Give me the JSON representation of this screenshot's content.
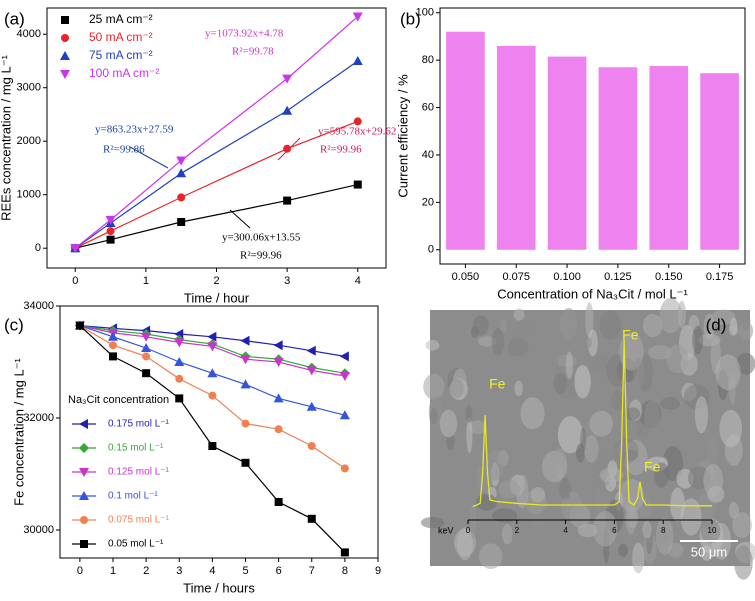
{
  "chart_data": [
    {
      "type": "scatter-line",
      "label": "(a)",
      "xlabel": "Time / hour",
      "ylabel": "REEs concentration / mg L⁻¹",
      "x": [
        0,
        0.5,
        1.5,
        3,
        4
      ],
      "xlim": [
        -0.4,
        4.4
      ],
      "xticks": [
        0,
        1,
        2,
        3,
        4
      ],
      "ylim": [
        -370,
        4490
      ],
      "yticks": [
        0,
        1000,
        2000,
        3000,
        4000
      ],
      "legend": "upper left",
      "series": [
        {
          "name": "25 mA cm⁻²",
          "color": "#000000",
          "marker": "square",
          "values": [
            0,
            160,
            490,
            890,
            1190
          ]
        },
        {
          "name": "50 mA cm⁻²",
          "color": "#e8242a",
          "marker": "circle",
          "values": [
            0,
            320,
            950,
            1860,
            2370
          ]
        },
        {
          "name": "75 mA cm⁻²",
          "color": "#2040c0",
          "marker": "triangle-up",
          "values": [
            0,
            470,
            1400,
            2570,
            3500
          ]
        },
        {
          "name": "100 mA cm⁻²",
          "color": "#cc33ee",
          "marker": "triangle-down",
          "values": [
            0,
            530,
            1640,
            3170,
            4330
          ]
        }
      ],
      "annotations": [
        {
          "text": "y=1073.92x+4.78",
          "color": "#cc33cc"
        },
        {
          "text": "R²=99.78",
          "color": "#cc33cc"
        },
        {
          "text": "y=863.23x+27.59",
          "color": "#1a3f9c"
        },
        {
          "text": "R²=99.86",
          "color": "#1a3f9c"
        },
        {
          "text": "y=595.78x+29.62",
          "color": "#d4145a"
        },
        {
          "text": "R²=99.96",
          "color": "#d4145a"
        },
        {
          "text": "y=300.06x+13.55",
          "color": "#000000"
        },
        {
          "text": "R²=99.96",
          "color": "#000000"
        }
      ]
    },
    {
      "type": "bar",
      "label": "(b)",
      "xlabel": "Concentration of Na₃Cit / mol L⁻¹",
      "ylabel": "Current efficiency / %",
      "categories": [
        "0.050",
        "0.075",
        "0.100",
        "0.125",
        "0.150",
        "0.175"
      ],
      "values": [
        92,
        86,
        81.5,
        77,
        77.5,
        74.5
      ],
      "color": "#ee82ee",
      "ylim": [
        -6,
        102
      ],
      "yticks": [
        0,
        20,
        40,
        60,
        80,
        100
      ]
    },
    {
      "type": "scatter-line",
      "label": "(c)",
      "xlabel": "Time / hours",
      "ylabel": "Fe concentration / mg L⁻¹",
      "x": [
        0,
        1,
        2,
        3,
        4,
        5,
        6,
        7,
        8
      ],
      "xlim": [
        -0.6,
        9
      ],
      "xticks": [
        0,
        1,
        2,
        3,
        4,
        5,
        6,
        7,
        8,
        9
      ],
      "ylim": [
        29500,
        34000
      ],
      "yticks": [
        30000,
        32000,
        34000
      ],
      "legend": "lower left",
      "legend_title": "Na₃Cit concentration",
      "series": [
        {
          "name": "0.175 mol L⁻¹",
          "color": "#1f1fb4",
          "marker": "triangle-left",
          "values": [
            33650,
            33600,
            33560,
            33500,
            33450,
            33380,
            33300,
            33200,
            33100
          ]
        },
        {
          "name": "0.15 mol L⁻¹",
          "color": "#33aa33",
          "marker": "diamond",
          "values": [
            33650,
            33560,
            33500,
            33400,
            33320,
            33100,
            33050,
            32900,
            32800
          ]
        },
        {
          "name": "0.125 mol L⁻¹",
          "color": "#cc33cc",
          "marker": "triangle-down",
          "values": [
            33650,
            33520,
            33450,
            33350,
            33280,
            33050,
            33000,
            32850,
            32750
          ]
        },
        {
          "name": "0.1 mol L⁻¹",
          "color": "#3355dd",
          "marker": "triangle-up",
          "values": [
            33650,
            33450,
            33250,
            33000,
            32800,
            32600,
            32350,
            32200,
            32050
          ]
        },
        {
          "name": "0.075 mol L⁻¹",
          "color": "#f08050",
          "marker": "circle",
          "values": [
            33650,
            33300,
            33100,
            32700,
            32400,
            31900,
            31800,
            31500,
            31100
          ]
        },
        {
          "name": "0.05 mol L⁻¹",
          "color": "#000000",
          "marker": "square",
          "values": [
            33650,
            33100,
            32800,
            32350,
            31500,
            31200,
            30500,
            30200,
            29600
          ]
        }
      ]
    },
    {
      "type": "spectrum",
      "label": "(d)",
      "xlabel": "keV",
      "scale_bar": "50 μm",
      "x": [
        0.2,
        0.5,
        0.6,
        0.7,
        0.8,
        0.9,
        1.2,
        2,
        3,
        4,
        5,
        6,
        6.2,
        6.3,
        6.4,
        6.5,
        6.6,
        6.8,
        6.95,
        7.05,
        7.15,
        7.3,
        8,
        9,
        10
      ],
      "xlim": [
        0,
        10
      ],
      "xticks": [
        0,
        2,
        4,
        6,
        8,
        10
      ],
      "ylim": [
        -8,
        100
      ],
      "series": [
        {
          "color": "#e8e820",
          "values": [
            0,
            2,
            20,
            55,
            20,
            4,
            3,
            2,
            1,
            1,
            1,
            1,
            3,
            40,
            100,
            40,
            3,
            1,
            5,
            15,
            5,
            1,
            1,
            0.5,
            0.5
          ]
        }
      ],
      "annotations": [
        {
          "text": "Fe",
          "x": 0.7,
          "y": 55
        },
        {
          "text": "Fe",
          "x": 6.4,
          "y": 100
        },
        {
          "text": "Fe",
          "x": 7.05,
          "y": 15
        }
      ]
    }
  ]
}
